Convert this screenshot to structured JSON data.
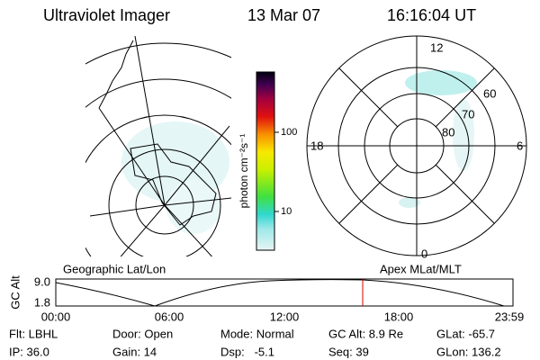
{
  "header": {
    "title": "Ultraviolet Imager",
    "date": "13 Mar 07",
    "time": "16:16:04 UT"
  },
  "colorbar": {
    "label": "photon cm⁻²s⁻¹",
    "ticks": [
      "100",
      "10"
    ]
  },
  "polar_plot": {
    "mlt_labels": [
      "12",
      "6",
      "0",
      "18"
    ],
    "lat_labels": [
      "60",
      "70",
      "80"
    ]
  },
  "timeline": {
    "left_label": "Geographic Lat/Lon",
    "right_label": "Apex MLat/MLT",
    "axis_label": "GC Alt",
    "y_ticks": [
      "9.0",
      "1.8"
    ],
    "x_ticks": [
      "00:00",
      "06:00",
      "12:00",
      "18:00",
      "23:59"
    ]
  },
  "info": {
    "rows": [
      [
        "Flt: LBHL",
        "Door: Open",
        "Mode: Normal",
        "GC Alt: 8.9 Re",
        "GLat: -65.7"
      ],
      [
        "IP: 36.0",
        "Gain: 14",
        "Dsp:   -5.1",
        "Seq: 39",
        "GLon: 136.2"
      ]
    ]
  }
}
